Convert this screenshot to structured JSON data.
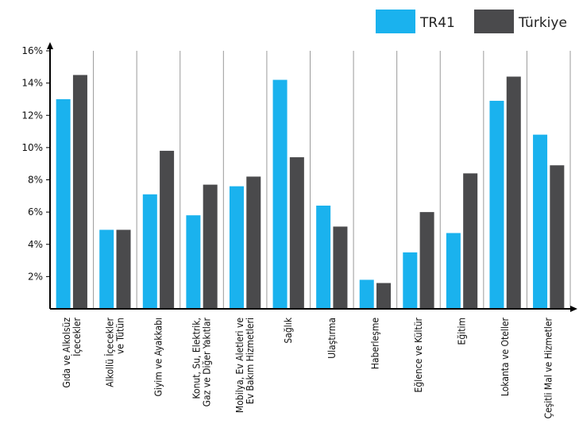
{
  "chart_data": {
    "type": "bar",
    "title": "",
    "xlabel": "",
    "ylabel": "",
    "ylim": [
      0,
      16
    ],
    "y_ticks": [
      2,
      4,
      6,
      8,
      10,
      12,
      14,
      16
    ],
    "y_tick_labels": [
      "2%",
      "4%",
      "6%",
      "8%",
      "10%",
      "12%",
      "14%",
      "16%"
    ],
    "grid": "vertical",
    "legend_position": "top-right",
    "categories": [
      [
        "Gıda ve Alkolsüz",
        "İçecekler"
      ],
      [
        "Alkollü İçecekler",
        "ve Tütün"
      ],
      [
        "Giyim ve Ayakkabı"
      ],
      [
        "Konut, Su, Elektrik,",
        "Gaz ve Diğer Yakıtlar"
      ],
      [
        "Mobilya, Ev Aletleri ve",
        "Ev Bakım Hizmetleri"
      ],
      [
        "Sağlık"
      ],
      [
        "Ulaştırma"
      ],
      [
        "Haberleşme"
      ],
      [
        "Eğlence ve Kültür"
      ],
      [
        "Eğitim"
      ],
      [
        "Lokanta ve Oteller"
      ],
      [
        "Çeşitli Mal ve Hizmetler"
      ]
    ],
    "series": [
      {
        "name": "TR41",
        "color": "#1ab2ee",
        "values": [
          13.0,
          4.9,
          7.1,
          5.8,
          7.6,
          14.2,
          6.4,
          1.8,
          3.5,
          4.7,
          12.9,
          10.8
        ]
      },
      {
        "name": "Türkiye",
        "color": "#4a4a4c",
        "values": [
          14.5,
          4.9,
          9.8,
          7.7,
          8.2,
          9.4,
          5.1,
          1.6,
          6.0,
          8.4,
          14.4,
          8.9
        ]
      }
    ]
  }
}
